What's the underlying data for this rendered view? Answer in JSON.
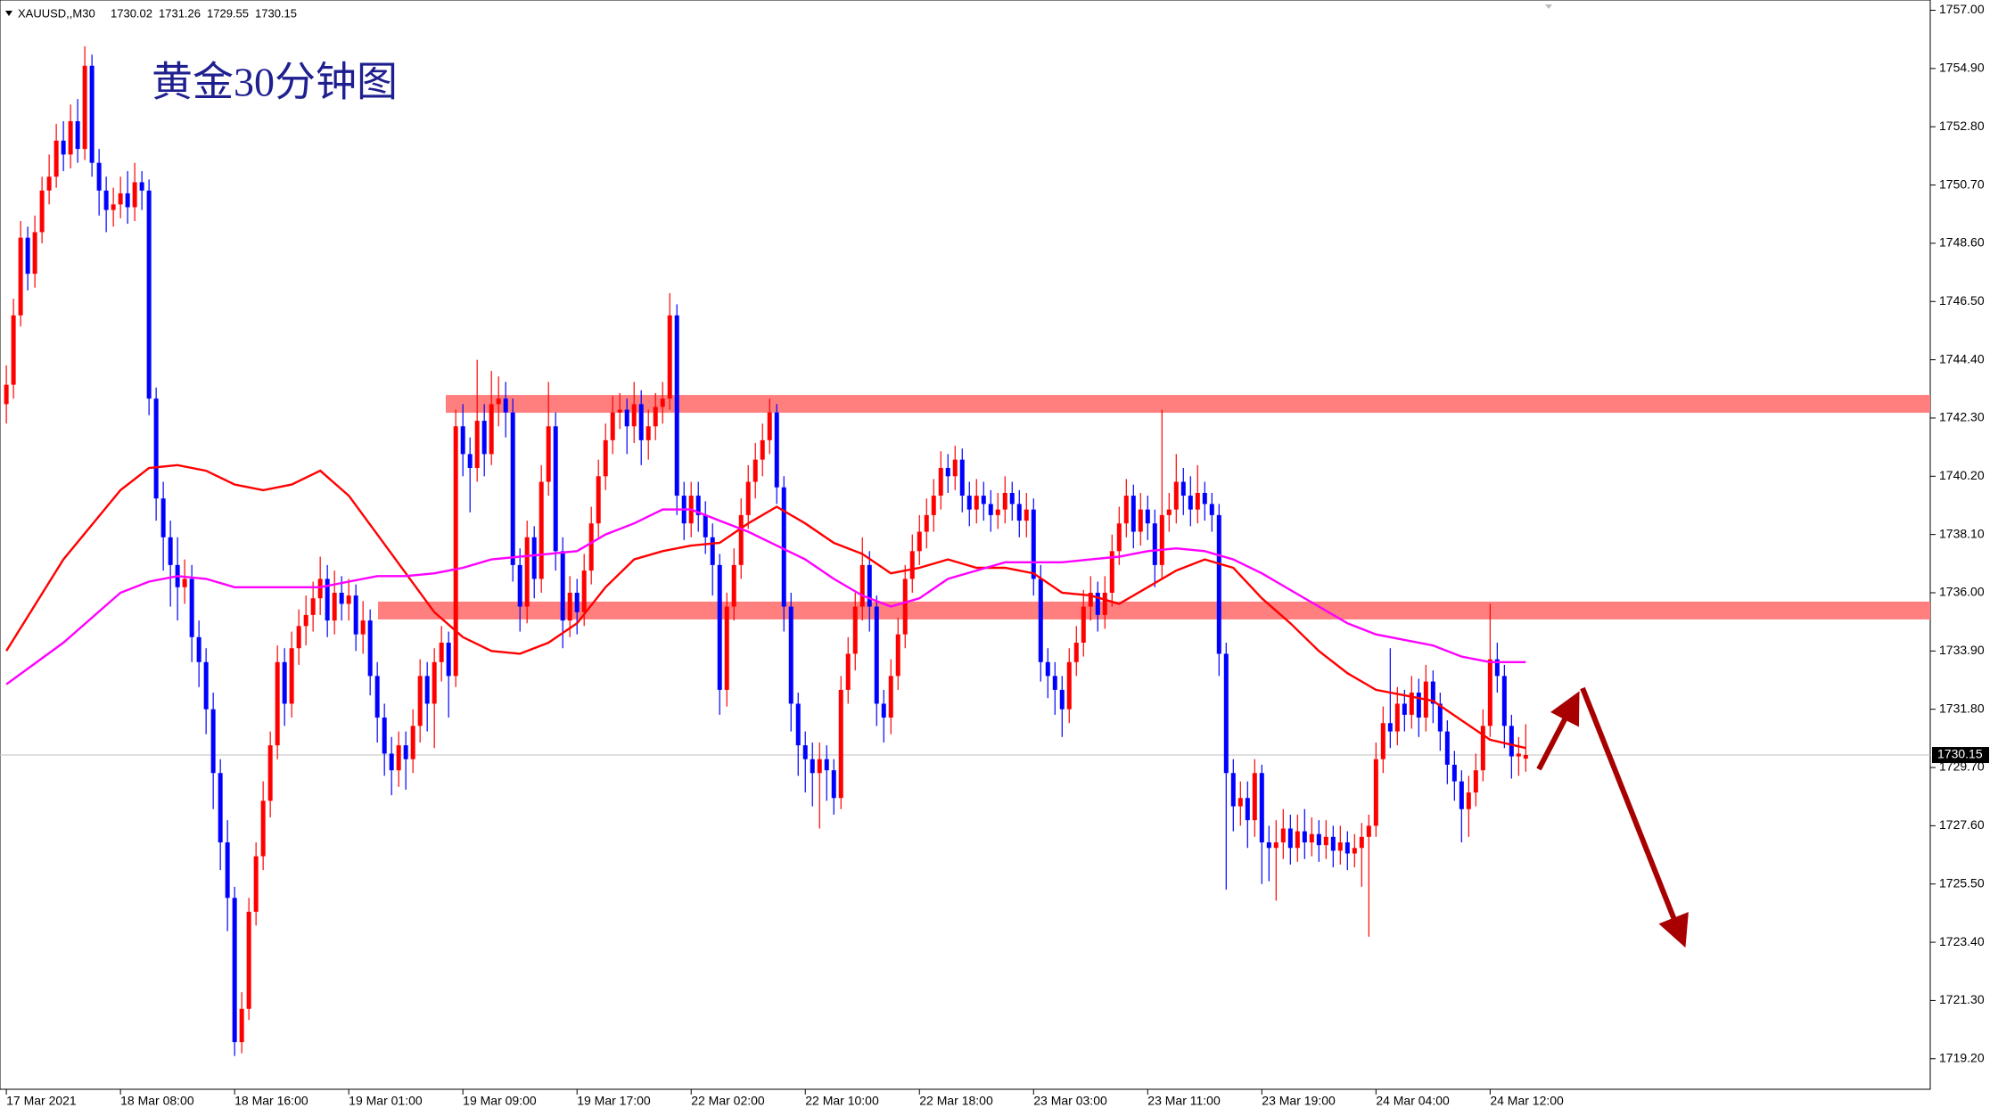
{
  "chart_data": {
    "type": "candlestick",
    "title": "黄金30分钟图",
    "header": {
      "symbol": "XAUUSD,,M30",
      "open": 1730.02,
      "high": 1731.26,
      "low": 1729.55,
      "close": 1730.15
    },
    "last_price": 1730.15,
    "up_color": "#ff0000",
    "down_color": "#0000ff",
    "ylim": [
      1718.1,
      1757.37
    ],
    "yticks": [
      {
        "value": 1757.0,
        "label": "1757.00"
      },
      {
        "value": 1754.9,
        "label": "1754.90"
      },
      {
        "value": 1752.8,
        "label": "1752.80"
      },
      {
        "value": 1750.7,
        "label": "1750.70"
      },
      {
        "value": 1748.6,
        "label": "1748.60"
      },
      {
        "value": 1746.5,
        "label": "1746.50"
      },
      {
        "value": 1744.4,
        "label": "1744.40"
      },
      {
        "value": 1742.3,
        "label": "1742.30"
      },
      {
        "value": 1740.2,
        "label": "1740.20"
      },
      {
        "value": 1738.1,
        "label": "1738.10"
      },
      {
        "value": 1736.0,
        "label": "1736.00"
      },
      {
        "value": 1733.9,
        "label": "1733.90"
      },
      {
        "value": 1731.8,
        "label": "1731.80"
      },
      {
        "value": 1729.7,
        "label": "1729.70"
      },
      {
        "value": 1727.6,
        "label": "1727.60"
      },
      {
        "value": 1725.5,
        "label": "1725.50"
      },
      {
        "value": 1723.4,
        "label": "1723.40"
      },
      {
        "value": 1721.3,
        "label": "1721.30"
      },
      {
        "value": 1719.2,
        "label": "1719.20"
      }
    ],
    "xlim": [
      -0.89,
      269.7
    ],
    "xticks": [
      {
        "value": 0,
        "label": "17 Mar 2021"
      },
      {
        "value": 16,
        "label": "18 Mar 08:00"
      },
      {
        "value": 32,
        "label": "18 Mar 16:00"
      },
      {
        "value": 48,
        "label": "19 Mar 01:00"
      },
      {
        "value": 64,
        "label": "19 Mar 09:00"
      },
      {
        "value": 80,
        "label": "19 Mar 17:00"
      },
      {
        "value": 96,
        "label": "22 Mar 02:00"
      },
      {
        "value": 112,
        "label": "22 Mar 10:00"
      },
      {
        "value": 128,
        "label": "22 Mar 18:00"
      },
      {
        "value": 144,
        "label": "23 Mar 03:00"
      },
      {
        "value": 160,
        "label": "23 Mar 11:00"
      },
      {
        "value": 176,
        "label": "23 Mar 19:00"
      },
      {
        "value": 192,
        "label": "24 Mar 04:00"
      },
      {
        "value": 208,
        "label": "24 Mar 12:00"
      }
    ],
    "open": [
      1742.8,
      1743.5,
      1746.0,
      1748.8,
      1747.5,
      1749.0,
      1750.5,
      1751.0,
      1752.3,
      1751.8,
      1753.0,
      1752.0,
      1755.0,
      1751.5,
      1750.5,
      1749.8,
      1750.0,
      1750.4,
      1749.9,
      1750.8,
      1750.5,
      1743.0,
      1739.4,
      1738.0,
      1737.0,
      1736.2,
      1736.5,
      1734.4,
      1733.5,
      1731.8,
      1729.5,
      1727.0,
      1725.0,
      1719.8,
      1721.0,
      1724.5,
      1726.5,
      1728.5,
      1730.5,
      1733.5,
      1732.0,
      1734.0,
      1734.8,
      1735.2,
      1735.8,
      1736.5,
      1735.0,
      1736.0,
      1735.6,
      1735.9,
      1734.5,
      1735.0,
      1733.0,
      1731.5,
      1730.2,
      1729.6,
      1730.5,
      1730.0,
      1731.2,
      1733.0,
      1732.0,
      1733.5,
      1734.2,
      1733.0,
      1742.0,
      1741.0,
      1740.5,
      1742.2,
      1741.0,
      1742.8,
      1743.0,
      1742.5,
      1737.0,
      1735.5,
      1738.0,
      1736.5,
      1740.0,
      1742.0,
      1737.5,
      1735.0,
      1736.0,
      1735.3,
      1736.8,
      1738.5,
      1740.2,
      1741.5,
      1742.5,
      1742.6,
      1742.0,
      1742.8,
      1741.5,
      1742.0,
      1742.7,
      1743.0,
      1746.0,
      1739.5,
      1738.5,
      1739.5,
      1738.8,
      1738.0,
      1737.0,
      1732.5,
      1735.5,
      1737.0,
      1738.8,
      1740.0,
      1740.8,
      1741.5,
      1742.5,
      1739.8,
      1735.5,
      1732.0,
      1730.5,
      1730.0,
      1729.5,
      1730.0,
      1729.6,
      1728.6,
      1732.5,
      1733.8,
      1735.5,
      1737.0,
      1735.5,
      1732.0,
      1731.5,
      1733.0,
      1734.5,
      1736.5,
      1737.5,
      1738.2,
      1738.8,
      1739.5,
      1740.5,
      1740.2,
      1740.8,
      1739.5,
      1739.0,
      1739.5,
      1739.2,
      1738.8,
      1739.0,
      1739.6,
      1739.2,
      1738.6,
      1739.0,
      1736.5,
      1733.5,
      1733.0,
      1732.5,
      1731.8,
      1733.5,
      1734.2,
      1735.5,
      1736.0,
      1735.2,
      1736.0,
      1737.5,
      1738.5,
      1739.5,
      1738.2,
      1739.0,
      1738.5,
      1737.0,
      1738.8,
      1739.0,
      1740.0,
      1739.5,
      1739.0,
      1739.6,
      1739.2,
      1738.8,
      1733.8,
      1729.5,
      1728.3,
      1728.6,
      1727.8,
      1729.5,
      1727.0,
      1726.8,
      1727.0,
      1727.5,
      1726.8,
      1727.4,
      1727.0,
      1727.3,
      1726.9,
      1727.2,
      1726.7,
      1727.0,
      1726.6,
      1726.8,
      1727.2,
      1727.6,
      1730.0,
      1731.3,
      1731.0,
      1732.0,
      1731.6,
      1732.4,
      1731.5,
      1732.8,
      1732.0,
      1731.0,
      1729.8,
      1729.2,
      1728.2,
      1728.8,
      1729.6,
      1731.2,
      1733.6,
      1733.0,
      1731.2,
      1730.1,
      1730.02
    ],
    "high": [
      1744.2,
      1746.6,
      1749.4,
      1749.2,
      1749.6,
      1751.0,
      1751.8,
      1752.9,
      1753.0,
      1753.6,
      1753.8,
      1755.7,
      1755.4,
      1752.0,
      1751.0,
      1750.6,
      1751.0,
      1751.2,
      1751.5,
      1751.2,
      1750.9,
      1743.4,
      1740.0,
      1738.6,
      1738.0,
      1737.2,
      1737.0,
      1735.0,
      1734.0,
      1732.4,
      1730.0,
      1727.8,
      1725.4,
      1721.6,
      1725.0,
      1727.0,
      1729.2,
      1731.0,
      1734.1,
      1734.0,
      1734.6,
      1735.4,
      1735.9,
      1736.4,
      1737.3,
      1737.0,
      1736.8,
      1736.6,
      1736.5,
      1736.3,
      1735.7,
      1735.4,
      1733.5,
      1732.0,
      1730.8,
      1731.0,
      1731.0,
      1731.8,
      1733.6,
      1733.5,
      1734.0,
      1734.8,
      1734.6,
      1742.6,
      1742.8,
      1741.6,
      1744.4,
      1742.8,
      1744.0,
      1743.8,
      1743.6,
      1743.0,
      1737.6,
      1738.6,
      1738.4,
      1740.6,
      1743.6,
      1742.5,
      1738.0,
      1736.6,
      1736.5,
      1737.4,
      1739.1,
      1740.8,
      1742.1,
      1743.1,
      1743.2,
      1743.0,
      1743.6,
      1743.3,
      1742.6,
      1743.2,
      1743.6,
      1746.8,
      1746.4,
      1740.0,
      1740.0,
      1740.0,
      1739.3,
      1738.5,
      1737.4,
      1736.0,
      1737.6,
      1739.4,
      1740.6,
      1741.4,
      1742.1,
      1743.0,
      1742.8,
      1740.2,
      1736.0,
      1732.4,
      1731.0,
      1730.6,
      1730.6,
      1730.5,
      1730.0,
      1733.0,
      1734.4,
      1736.0,
      1738.0,
      1737.5,
      1735.9,
      1732.5,
      1733.6,
      1735.1,
      1737.0,
      1738.1,
      1738.8,
      1739.4,
      1740.1,
      1741.1,
      1741.0,
      1741.3,
      1741.2,
      1740.0,
      1740.1,
      1740.0,
      1739.7,
      1739.6,
      1740.2,
      1740.0,
      1739.7,
      1739.6,
      1739.4,
      1737.0,
      1734.0,
      1733.5,
      1733.0,
      1734.0,
      1734.8,
      1736.1,
      1736.6,
      1736.4,
      1736.6,
      1738.1,
      1739.1,
      1740.1,
      1739.9,
      1739.6,
      1739.5,
      1739.0,
      1742.6,
      1739.6,
      1741.0,
      1740.5,
      1740.2,
      1740.6,
      1740.0,
      1739.6,
      1739.2,
      1734.2,
      1730.0,
      1729.2,
      1729.2,
      1730.0,
      1729.8,
      1727.6,
      1727.8,
      1728.2,
      1728.0,
      1728.0,
      1728.2,
      1727.9,
      1727.8,
      1727.8,
      1727.6,
      1727.6,
      1727.4,
      1727.3,
      1727.7,
      1728.0,
      1730.6,
      1731.9,
      1734.0,
      1732.6,
      1732.5,
      1733.0,
      1732.9,
      1733.4,
      1733.2,
      1732.4,
      1731.4,
      1730.3,
      1729.6,
      1729.4,
      1730.2,
      1731.8,
      1735.6,
      1734.2,
      1733.4,
      1731.6,
      1730.8,
      1731.26
    ],
    "low": [
      1742.1,
      1743.0,
      1745.6,
      1746.9,
      1747.0,
      1748.6,
      1750.0,
      1750.6,
      1751.2,
      1751.3,
      1751.5,
      1751.6,
      1751.0,
      1749.6,
      1749.0,
      1749.2,
      1749.5,
      1749.3,
      1749.4,
      1749.8,
      1742.4,
      1738.6,
      1736.8,
      1735.5,
      1735.0,
      1735.6,
      1733.5,
      1732.6,
      1730.9,
      1728.2,
      1726.0,
      1723.8,
      1719.3,
      1719.4,
      1720.6,
      1724.0,
      1726.0,
      1727.9,
      1730.0,
      1731.2,
      1731.5,
      1733.4,
      1734.1,
      1734.6,
      1735.2,
      1734.4,
      1734.5,
      1735.0,
      1735.0,
      1733.9,
      1733.8,
      1732.3,
      1730.6,
      1729.4,
      1728.7,
      1729.0,
      1728.9,
      1729.5,
      1730.6,
      1731.0,
      1730.4,
      1732.8,
      1731.5,
      1732.6,
      1740.2,
      1738.9,
      1740.0,
      1740.2,
      1740.6,
      1742.0,
      1741.6,
      1736.4,
      1734.6,
      1734.9,
      1735.8,
      1736.0,
      1739.5,
      1736.8,
      1734.0,
      1734.4,
      1734.5,
      1734.8,
      1736.3,
      1738.0,
      1739.7,
      1741.0,
      1741.9,
      1741.0,
      1741.4,
      1740.6,
      1740.8,
      1741.5,
      1742.1,
      1742.6,
      1738.8,
      1737.9,
      1738.0,
      1738.2,
      1737.4,
      1735.9,
      1731.6,
      1731.9,
      1735.0,
      1736.5,
      1738.3,
      1739.4,
      1740.2,
      1741.0,
      1739.2,
      1734.6,
      1731.0,
      1729.4,
      1728.8,
      1728.3,
      1727.5,
      1728.5,
      1728.0,
      1728.2,
      1732.0,
      1733.2,
      1735.0,
      1734.6,
      1731.2,
      1730.6,
      1730.9,
      1732.5,
      1734.0,
      1736.0,
      1737.0,
      1737.6,
      1738.2,
      1739.0,
      1739.6,
      1739.7,
      1738.9,
      1738.4,
      1738.5,
      1738.6,
      1738.2,
      1738.3,
      1738.5,
      1738.6,
      1738.0,
      1738.0,
      1735.9,
      1732.8,
      1732.2,
      1731.6,
      1730.8,
      1731.3,
      1733.0,
      1733.7,
      1735.0,
      1734.6,
      1734.7,
      1735.5,
      1737.0,
      1738.0,
      1737.6,
      1737.7,
      1737.9,
      1736.2,
      1736.5,
      1738.2,
      1738.5,
      1738.8,
      1738.4,
      1738.5,
      1738.6,
      1738.2,
      1733.0,
      1725.3,
      1727.4,
      1727.6,
      1726.8,
      1727.2,
      1725.5,
      1725.6,
      1724.9,
      1726.4,
      1726.2,
      1726.3,
      1726.4,
      1726.5,
      1726.3,
      1726.4,
      1726.1,
      1726.2,
      1726.0,
      1726.1,
      1725.4,
      1723.6,
      1727.2,
      1729.5,
      1730.4,
      1730.5,
      1731.0,
      1731.1,
      1730.8,
      1731.0,
      1731.3,
      1730.3,
      1729.1,
      1728.5,
      1727.0,
      1727.2,
      1728.3,
      1729.2,
      1730.8,
      1732.4,
      1730.4,
      1729.3,
      1729.4,
      1729.55
    ],
    "close": [
      1743.5,
      1746.0,
      1748.8,
      1747.5,
      1749.0,
      1750.5,
      1751.0,
      1752.3,
      1751.8,
      1753.0,
      1752.0,
      1755.0,
      1751.5,
      1750.5,
      1749.8,
      1750.0,
      1750.4,
      1749.9,
      1750.8,
      1750.5,
      1743.0,
      1739.4,
      1738.0,
      1737.0,
      1736.2,
      1736.5,
      1734.4,
      1733.5,
      1731.8,
      1729.5,
      1727.0,
      1725.0,
      1719.8,
      1721.0,
      1724.5,
      1726.5,
      1728.5,
      1730.5,
      1733.5,
      1732.0,
      1734.0,
      1734.8,
      1735.2,
      1735.8,
      1736.5,
      1735.0,
      1736.0,
      1735.6,
      1735.9,
      1734.5,
      1735.0,
      1733.0,
      1731.5,
      1730.2,
      1729.6,
      1730.5,
      1730.0,
      1731.2,
      1733.0,
      1732.0,
      1733.5,
      1734.2,
      1733.0,
      1742.0,
      1741.0,
      1740.5,
      1742.2,
      1741.0,
      1742.8,
      1743.0,
      1742.5,
      1737.0,
      1735.5,
      1738.0,
      1736.5,
      1740.0,
      1742.0,
      1737.5,
      1735.0,
      1736.0,
      1735.3,
      1736.8,
      1738.5,
      1740.2,
      1741.5,
      1742.5,
      1742.6,
      1742.0,
      1742.8,
      1741.5,
      1742.0,
      1742.7,
      1743.0,
      1746.0,
      1739.5,
      1738.5,
      1739.5,
      1738.8,
      1738.0,
      1737.0,
      1732.5,
      1735.5,
      1737.0,
      1738.8,
      1740.0,
      1740.8,
      1741.5,
      1742.5,
      1739.8,
      1735.5,
      1732.0,
      1730.5,
      1730.0,
      1729.5,
      1730.0,
      1729.6,
      1728.6,
      1732.5,
      1733.8,
      1735.5,
      1737.0,
      1735.5,
      1732.0,
      1731.5,
      1733.0,
      1734.5,
      1736.5,
      1737.5,
      1738.2,
      1738.8,
      1739.5,
      1740.5,
      1740.2,
      1740.8,
      1739.5,
      1739.0,
      1739.5,
      1739.2,
      1738.8,
      1739.0,
      1739.6,
      1739.2,
      1738.6,
      1739.0,
      1736.5,
      1733.5,
      1733.0,
      1732.5,
      1731.8,
      1733.5,
      1734.2,
      1735.5,
      1736.0,
      1735.2,
      1736.0,
      1737.5,
      1738.5,
      1739.5,
      1738.2,
      1739.0,
      1738.5,
      1737.0,
      1738.8,
      1739.0,
      1740.0,
      1739.5,
      1739.0,
      1739.6,
      1739.2,
      1738.8,
      1733.8,
      1729.5,
      1728.3,
      1728.6,
      1727.8,
      1729.5,
      1727.0,
      1726.8,
      1727.0,
      1727.5,
      1726.8,
      1727.4,
      1727.0,
      1727.3,
      1726.9,
      1727.2,
      1726.7,
      1727.0,
      1726.6,
      1726.8,
      1727.2,
      1727.6,
      1730.0,
      1731.3,
      1731.0,
      1732.0,
      1731.6,
      1732.4,
      1731.5,
      1732.8,
      1732.0,
      1731.0,
      1729.8,
      1729.2,
      1728.2,
      1728.8,
      1729.6,
      1731.2,
      1733.6,
      1733.0,
      1731.2,
      1730.1,
      1730.2,
      1730.15
    ],
    "lines": [
      {
        "color": "#ff0000",
        "x": [
          0,
          8,
          16,
          20,
          24,
          28,
          32,
          36,
          40,
          44,
          48,
          52,
          56,
          60,
          64,
          68,
          72,
          76,
          80,
          84,
          88,
          92,
          96,
          100,
          104,
          108,
          112,
          116,
          120,
          124,
          128,
          132,
          136,
          140,
          144,
          148,
          152,
          156,
          160,
          164,
          168,
          172,
          176,
          180,
          184,
          188,
          192,
          196,
          200,
          204,
          208,
          213
        ],
        "values": [
          1733.9,
          1737.2,
          1739.7,
          1740.5,
          1740.6,
          1740.4,
          1739.9,
          1739.7,
          1739.9,
          1740.4,
          1739.5,
          1738.1,
          1736.7,
          1735.3,
          1734.4,
          1733.9,
          1733.8,
          1734.2,
          1734.9,
          1736.2,
          1737.2,
          1737.5,
          1737.7,
          1737.8,
          1738.5,
          1739.1,
          1738.5,
          1737.8,
          1737.4,
          1736.7,
          1736.9,
          1737.2,
          1736.9,
          1736.9,
          1736.7,
          1736.0,
          1735.9,
          1735.6,
          1736.2,
          1736.8,
          1737.2,
          1736.9,
          1735.8,
          1734.9,
          1733.9,
          1733.1,
          1732.5,
          1732.3,
          1732.1,
          1731.4,
          1730.7,
          1730.4
        ]
      },
      {
        "color": "#ff00ff",
        "x": [
          0,
          8,
          16,
          20,
          24,
          28,
          32,
          36,
          40,
          44,
          48,
          52,
          56,
          60,
          64,
          68,
          72,
          76,
          80,
          84,
          88,
          92,
          96,
          100,
          104,
          108,
          112,
          116,
          120,
          124,
          128,
          132,
          136,
          140,
          144,
          148,
          152,
          156,
          160,
          164,
          168,
          172,
          176,
          180,
          184,
          188,
          192,
          196,
          200,
          204,
          208,
          213
        ],
        "values": [
          1732.7,
          1734.2,
          1736.0,
          1736.4,
          1736.6,
          1736.5,
          1736.2,
          1736.2,
          1736.2,
          1736.2,
          1736.4,
          1736.6,
          1736.6,
          1736.7,
          1736.9,
          1737.2,
          1737.3,
          1737.4,
          1737.5,
          1738.1,
          1738.5,
          1739.0,
          1739.0,
          1738.6,
          1738.2,
          1737.7,
          1737.2,
          1736.5,
          1735.9,
          1735.5,
          1735.8,
          1736.5,
          1736.8,
          1737.1,
          1737.1,
          1737.1,
          1737.2,
          1737.3,
          1737.5,
          1737.6,
          1737.5,
          1737.2,
          1736.7,
          1736.1,
          1735.5,
          1734.9,
          1734.5,
          1734.3,
          1734.1,
          1733.7,
          1733.5,
          1733.5
        ]
      }
    ],
    "levels": [
      {
        "price": 1742.81,
        "from": 61.6,
        "color": "#ff7f7f"
      },
      {
        "price": 1735.36,
        "from": 52.1,
        "color": "#ff7f7f"
      }
    ]
  }
}
